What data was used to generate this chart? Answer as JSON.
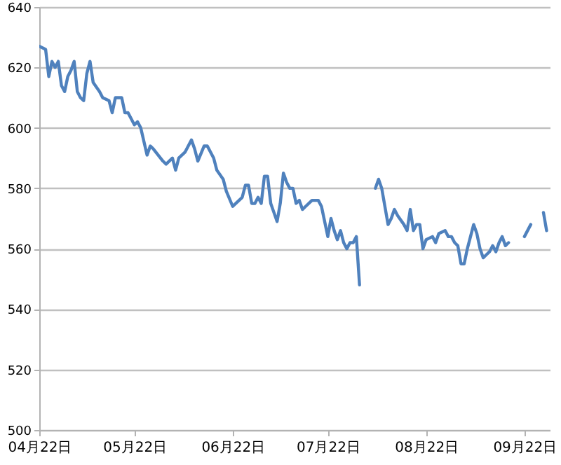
{
  "chart_data": {
    "type": "line",
    "x": [
      "--04-22",
      "--04-24",
      "--04-25",
      "--04-26",
      "--04-27",
      "--04-28",
      "--04-29",
      "--04-30",
      "--05-01",
      "--05-02",
      "--05-03",
      "--05-04",
      "--05-05",
      "--05-06",
      "--05-07",
      "--05-08",
      "--05-09",
      "--05-11",
      "--05-12",
      "--05-14",
      "--05-15",
      "--05-16",
      "--05-18",
      "--05-19",
      "--05-20",
      "--05-22",
      "--05-23",
      "--05-24",
      "--05-26",
      "--05-27",
      "--05-28",
      "--05-31",
      "--06-01",
      "--06-03",
      "--06-04",
      "--06-05",
      "--06-07",
      "--06-09",
      "--06-10",
      "--06-11",
      "--06-13",
      "--06-14",
      "--06-16",
      "--06-17",
      "--06-19",
      "--06-20",
      "--06-22",
      "--06-23",
      "--06-25",
      "--06-26",
      "--06-27",
      "--06-28",
      "--06-29",
      "--06-30",
      "--07-01",
      "--07-02",
      "--07-03",
      "--07-04",
      "--07-05",
      "--07-06",
      "--07-07",
      "--07-08",
      "--07-09",
      "--07-10",
      "--07-11",
      "--07-12",
      "--07-13",
      "--07-14",
      "--07-15",
      "--07-17",
      "--07-19",
      "--07-20",
      "--07-21",
      "--07-22",
      "--07-23",
      "--07-24",
      "--07-25",
      "--07-26",
      "--07-27",
      "--07-28",
      "--07-29",
      "--07-30",
      "--07-31",
      "--08-01",
      "--08-04",
      "--08-06",
      "--08-07",
      "--08-08",
      "--08-10",
      "--08-11",
      "--08-12",
      "--08-13",
      "--08-15",
      "--08-16",
      "--08-17",
      "--08-18",
      "--08-19",
      "--08-20",
      "--08-21",
      "--08-22",
      "--08-24",
      "--08-25",
      "--08-26",
      "--08-28",
      "--08-29",
      "--08-30",
      "--08-31",
      "--09-01",
      "--09-02",
      "--09-03",
      "--09-04",
      "--09-06",
      "--09-07",
      "--09-08",
      "--09-09",
      "--09-10",
      "--09-11",
      "--09-12",
      "--09-13",
      "--09-14",
      "--09-15",
      "--09-16",
      "--09-17",
      "--09-19",
      "--09-22",
      "--09-24",
      "--09-26",
      "--09-28",
      "--09-29"
    ],
    "series": [
      {
        "color": "#4f81bd",
        "values": [
          627,
          626,
          617,
          622,
          620,
          622,
          614,
          612,
          617,
          619,
          622,
          612,
          610,
          609,
          618,
          622,
          615,
          612,
          610,
          609,
          605,
          610,
          610,
          605,
          605,
          601,
          602,
          600,
          591,
          594,
          593,
          589,
          588,
          590,
          586,
          590,
          592,
          596,
          593,
          589,
          594,
          594,
          590,
          586,
          583,
          579,
          574,
          575,
          577,
          581,
          581,
          575,
          575,
          577,
          575,
          584,
          584,
          575,
          572,
          569,
          575,
          585,
          582,
          580,
          580,
          575,
          576,
          573,
          574,
          576,
          576,
          574,
          569,
          564,
          570,
          566,
          563,
          566,
          562,
          560,
          562,
          562,
          564,
          548,
          null,
          580,
          583,
          580,
          568,
          570,
          573,
          571,
          568,
          566,
          573,
          566,
          568,
          568,
          560,
          563,
          564,
          562,
          565,
          566,
          564,
          564,
          562,
          561,
          555,
          555,
          560,
          568,
          565,
          560,
          557,
          558,
          559,
          561,
          559,
          562,
          564,
          561,
          562,
          null,
          564,
          568,
          null,
          572,
          566
        ]
      }
    ],
    "xlim": [
      "--04-22",
      "--09-30"
    ],
    "xticks": [
      {
        "value": "--04-22",
        "label": "04月22日"
      },
      {
        "value": "--05-22",
        "label": "05月22日"
      },
      {
        "value": "--06-22",
        "label": "06月22日"
      },
      {
        "value": "--07-22",
        "label": "07月22日"
      },
      {
        "value": "--08-22",
        "label": "08月22日"
      },
      {
        "value": "--09-22",
        "label": "09月22日"
      }
    ],
    "ylim": [
      500,
      640
    ],
    "yticks": [
      500,
      520,
      540,
      560,
      580,
      600,
      620,
      640
    ],
    "grid": "y",
    "marker": "none",
    "line_style": "solid"
  }
}
